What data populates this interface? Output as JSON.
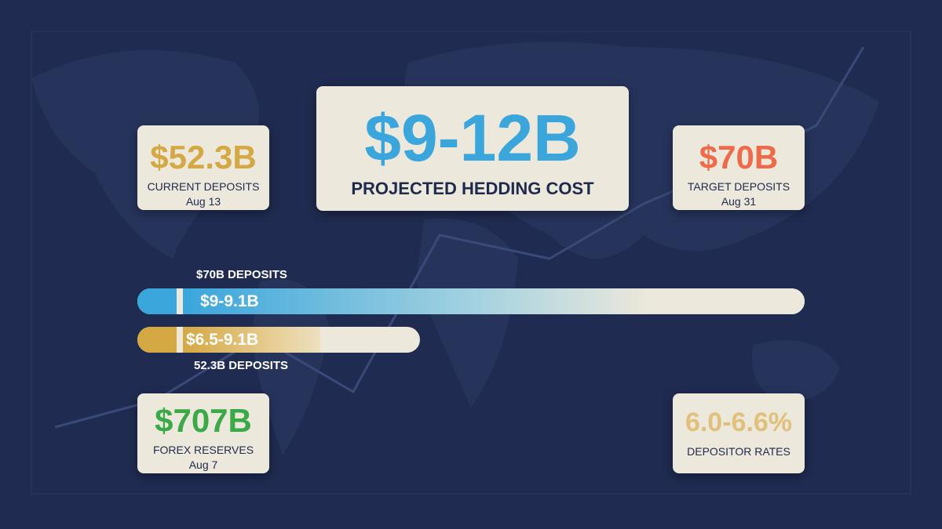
{
  "hero": {
    "value": "$9-12B",
    "label": "PROJECTED HEDDING COST"
  },
  "cards": [
    {
      "value": "$52.3B",
      "label": "CURRENT DEPOSITS",
      "date": "Aug 13"
    },
    {
      "value": "$70B",
      "label": "TARGET DEPOSITS",
      "date": "Aug 31"
    },
    {
      "value": "$707B",
      "label": "FOREX RESERVES",
      "date": "Aug 7"
    },
    {
      "value": "6.0-6.6%",
      "label": "DEPOSITOR RATES"
    }
  ],
  "bars": [
    {
      "caption": "$70B DEPOSITS",
      "range": "$9-9.1B"
    },
    {
      "caption": "52.3B DEPOSITS",
      "range": "$6.5-9.1B"
    }
  ]
}
